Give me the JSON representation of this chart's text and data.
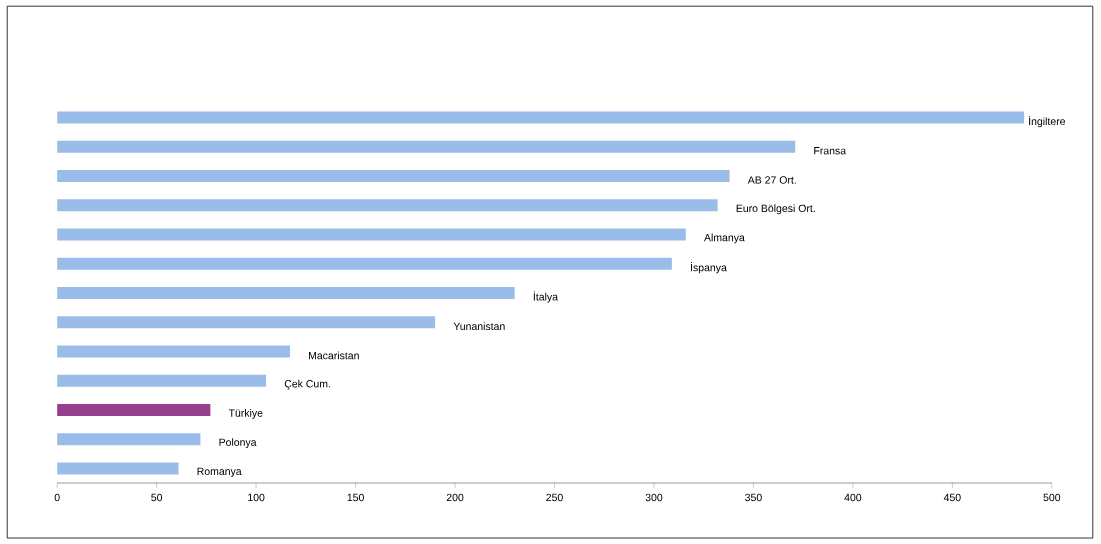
{
  "chart_data": {
    "type": "bar",
    "orientation": "horizontal",
    "categories": [
      "İngiltere",
      "Fransa",
      "AB 27 Ort.",
      "Euro Bölgesi Ort.",
      "Almanya",
      "İspanya",
      "İtalya",
      "Yunanistan",
      "Macaristan",
      "Çek Cum.",
      "Türkiye",
      "Polonya",
      "Romanya"
    ],
    "values": [
      486,
      371,
      338,
      332,
      316,
      309,
      230,
      190,
      117,
      105,
      77,
      72,
      61
    ],
    "colors": [
      "#99bde8",
      "#99bde8",
      "#99bde8",
      "#99bde8",
      "#99bde8",
      "#99bde8",
      "#99bde8",
      "#99bde8",
      "#99bde8",
      "#99bde8",
      "#953f8f",
      "#99bde8",
      "#99bde8"
    ],
    "xlim": [
      0,
      500
    ],
    "xticks": [
      0,
      50,
      100,
      150,
      200,
      250,
      300,
      350,
      400,
      450,
      500
    ],
    "grid": false
  }
}
